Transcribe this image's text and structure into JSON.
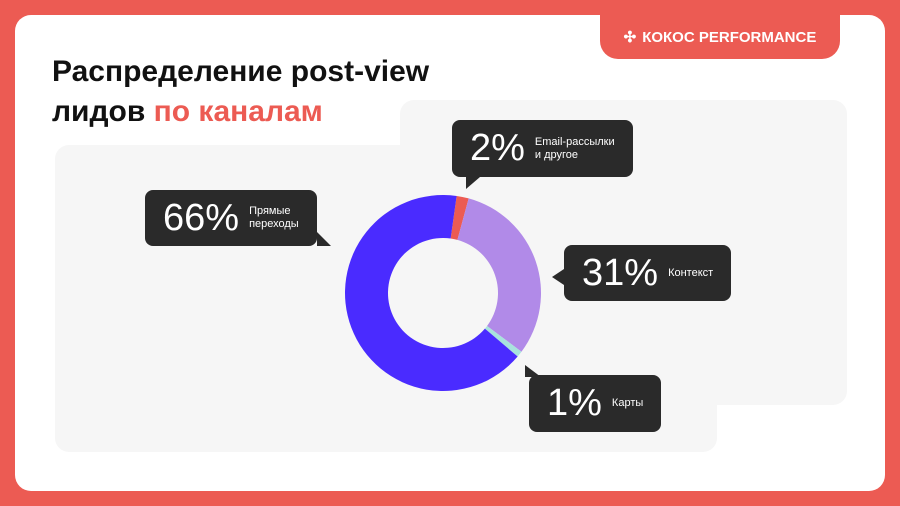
{
  "brand": "КОКОС PERFORMANCE",
  "title": {
    "line1": "Распределение post-view",
    "line2_plain": "лидов ",
    "line2_accent": "по каналам"
  },
  "chart_data": {
    "type": "pie",
    "title": "Распределение post-view лидов по каналам",
    "categories": [
      "Email-рассылки и другое",
      "Контекст",
      "Карты",
      "Прямые переходы"
    ],
    "values": [
      2,
      31,
      1,
      66
    ],
    "labels": [
      "2%",
      "31%",
      "1%",
      "66%"
    ],
    "colors": [
      "#ec5b53",
      "#b18ae8",
      "#a8e3dd",
      "#4a2bff"
    ]
  },
  "bubbles": {
    "email": {
      "pct": "2%",
      "l1": "Email-рассылки",
      "l2": "и другое"
    },
    "context": {
      "pct": "31%",
      "l1": "Контекст"
    },
    "maps": {
      "pct": "1%",
      "l1": "Карты"
    },
    "direct": {
      "pct": "66%",
      "l1": "Прямые",
      "l2": "переходы"
    }
  }
}
